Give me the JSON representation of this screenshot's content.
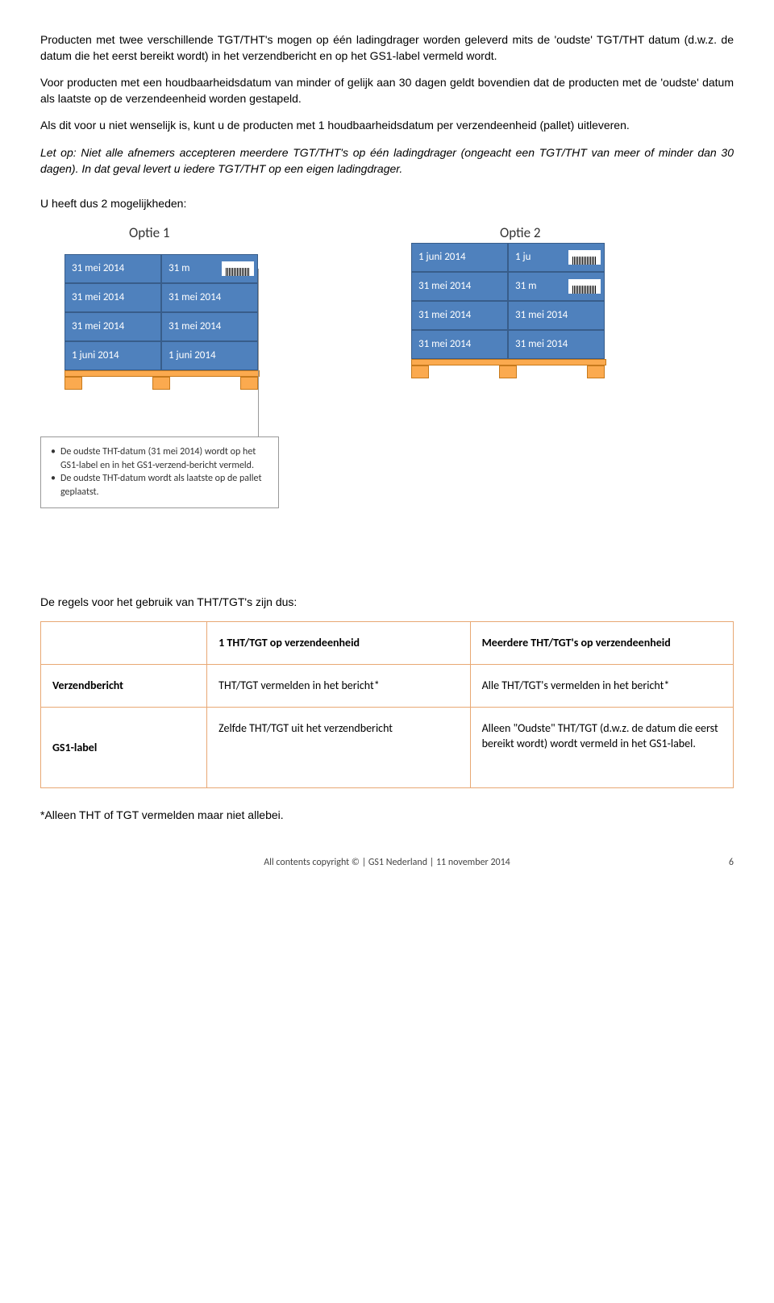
{
  "para1": "Producten met twee verschillende TGT/THT's mogen op één ladingdrager worden geleverd mits de 'oudste' TGT/THT datum (d.w.z. de datum die het eerst bereikt wordt) in het verzendbericht en op het GS1-label vermeld wordt.",
  "para2": "Voor producten met een houdbaarheidsdatum van minder of gelijk aan 30 dagen geldt bovendien dat de producten met de 'oudste' datum als laatste op de verzendeenheid worden gestapeld.",
  "para3": "Als dit voor u niet wenselijk is, kunt u de producten met 1 houdbaarheidsdatum per verzendeenheid (pallet) uitleveren.",
  "para4": "Let op: Niet alle afnemers accepteren meerdere TGT/THT's op één ladingdrager (ongeacht een TGT/THT van meer of minder dan 30 dagen). In dat geval levert u iedere TGT/THT op een eigen ladingdrager.",
  "options_heading": "U heeft dus 2 mogelijkheden:",
  "optie1_label": "Optie 1",
  "optie2_label": "Optie 2",
  "pallet1": {
    "rows": [
      [
        "31 mei 2014",
        "31 m"
      ],
      [
        "31 mei 2014",
        "31 mei 2014"
      ],
      [
        "31 mei 2014",
        "31 mei 2014"
      ],
      [
        "1 juni 2014",
        "1 juni 2014"
      ]
    ],
    "barcode_at": [
      0,
      1
    ]
  },
  "pallet2": {
    "rows": [
      [
        "1 juni 2014",
        "1 ju"
      ],
      [
        "31 mei 2014",
        "31 m"
      ],
      [
        "31 mei 2014",
        "31 mei 2014"
      ],
      [
        "31 mei 2014",
        "31 mei 2014"
      ]
    ],
    "barcode_at": [
      [
        0,
        1
      ],
      [
        1,
        1
      ]
    ]
  },
  "callout_bullets": [
    "De oudste THT-datum   (31 mei 2014) wordt op het GS1-label  en in het GS1-verzend-bericht vermeld.",
    "De oudste THT-datum wordt als laatste op de pallet geplaatst."
  ],
  "rules_heading": "De regels voor het gebruik van THT/TGT's zijn dus:",
  "table": {
    "head": [
      "",
      "1 THT/TGT op verzendeenheid",
      "Meerdere THT/TGT's op verzendeenheid"
    ],
    "rows": [
      [
        "Verzendbericht",
        "THT/TGT vermelden in het bericht*",
        "Alle THT/TGT's vermelden in het bericht*"
      ],
      [
        "GS1-label",
        "Zelfde THT/TGT uit het verzendbericht",
        "Alleen \"Oudste\" THT/TGT (d.w.z. de datum die eerst bereikt wordt) wordt vermeld in het GS1-label."
      ]
    ]
  },
  "footnote": "*Alleen THT of TGT vermelden maar niet allebei.",
  "footer_text": "All contents copyright © | GS1 Nederland | 11 november 2014",
  "footer_page": "6",
  "colors": {
    "box_fill": "#4f81bd",
    "box_border": "#385d8a",
    "timber_fill": "#fbaa4f",
    "timber_border": "#c77a1c",
    "table_border": "#e8a874"
  }
}
